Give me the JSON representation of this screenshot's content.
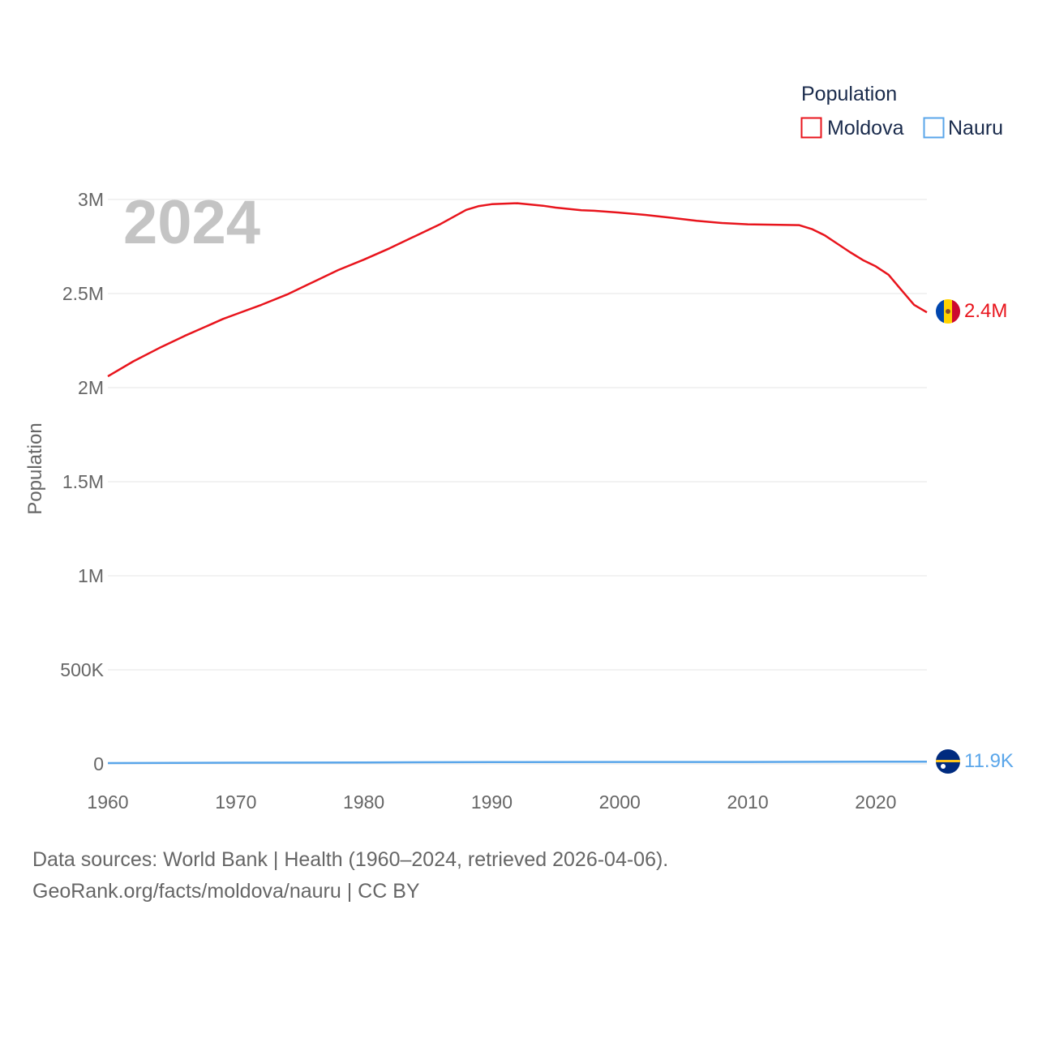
{
  "colors": {
    "moldova": "#e8141c",
    "nauru": "#5aa6ea",
    "grid": "#e6e6e6",
    "text": "#666666",
    "legend_text": "#1a2b4c",
    "watermark": "#c4c4c4"
  },
  "legend": {
    "title": "Population",
    "items": [
      "Moldova",
      "Nauru"
    ]
  },
  "year_label": "2024",
  "end_labels": {
    "moldova": "2.4M",
    "nauru": "11.9K"
  },
  "flags": {
    "moldova": "moldova-flag-icon",
    "nauru": "nauru-flag-icon"
  },
  "source": {
    "line1": "Data sources: World Bank | Health (1960–2024, retrieved 2026-04-06).",
    "line2": "GeoRank.org/facts/moldova/nauru | CC BY"
  },
  "chart_data": {
    "type": "line",
    "title": "",
    "xlabel": "",
    "ylabel": "Population",
    "xlim": [
      1960,
      2024
    ],
    "ylim": [
      0,
      3000000
    ],
    "x_ticks": [
      1960,
      1970,
      1980,
      1990,
      2000,
      2010,
      2020
    ],
    "x_tick_labels": [
      "1960",
      "1970",
      "1980",
      "1990",
      "2000",
      "2010",
      "2020"
    ],
    "y_ticks": [
      0,
      500000,
      1000000,
      1500000,
      2000000,
      2500000,
      3000000
    ],
    "y_tick_labels": [
      "0",
      "500K",
      "1M",
      "1.5M",
      "2M",
      "2.5M",
      "3M"
    ],
    "grid": true,
    "legend_position": "top-right",
    "series": [
      {
        "name": "Moldova",
        "x": [
          1960,
          1962,
          1964,
          1966,
          1968,
          1969,
          1970,
          1972,
          1974,
          1976,
          1978,
          1980,
          1982,
          1984,
          1986,
          1988,
          1989,
          1990,
          1992,
          1994,
          1995,
          1996,
          1997,
          1998,
          2000,
          2002,
          2004,
          2006,
          2008,
          2010,
          2012,
          2014,
          2015,
          2016,
          2017,
          2018,
          2019,
          2020,
          2021,
          2022,
          2023,
          2024
        ],
        "values": [
          2060000,
          2140000,
          2210000,
          2275000,
          2335000,
          2365000,
          2390000,
          2440000,
          2495000,
          2560000,
          2625000,
          2680000,
          2740000,
          2805000,
          2870000,
          2945000,
          2965000,
          2975000,
          2980000,
          2967000,
          2957000,
          2950000,
          2943000,
          2940000,
          2930000,
          2918000,
          2903000,
          2887000,
          2875000,
          2868000,
          2866000,
          2864000,
          2843000,
          2810000,
          2765000,
          2720000,
          2678000,
          2645000,
          2600000,
          2520000,
          2440000,
          2400000
        ]
      },
      {
        "name": "Nauru",
        "x": [
          1960,
          1970,
          1980,
          1990,
          2000,
          2010,
          2020,
          2024
        ],
        "values": [
          4400,
          6600,
          7600,
          9600,
          10400,
          10200,
          11700,
          11900
        ]
      }
    ]
  }
}
